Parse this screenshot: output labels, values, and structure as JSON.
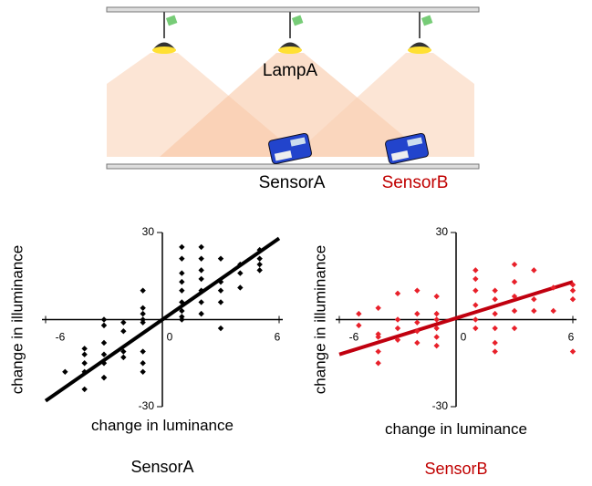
{
  "diagram": {
    "lamp_label": "LampA",
    "sensors": [
      "SensorA",
      "SensorB"
    ]
  },
  "chart_data": [
    {
      "type": "scatter",
      "title": "SensorA",
      "title_color": "#000000",
      "xlabel": "change in luminance",
      "ylabel": "change in illuminance",
      "xlim": [
        -6,
        6
      ],
      "ylim": [
        -30,
        30
      ],
      "xticks": [
        -6,
        0,
        6
      ],
      "yticks": [
        -30,
        30
      ],
      "color": "#000000",
      "x": [
        -5,
        -4,
        -4,
        -4,
        -4,
        -4,
        -3,
        -3,
        -3,
        -3,
        -3,
        -3,
        -3,
        -2,
        -2,
        -2,
        -2,
        -1,
        -1,
        -1,
        -1,
        -1,
        -1,
        -1,
        -1,
        1,
        1,
        1,
        1,
        1,
        1,
        1,
        1,
        1,
        2,
        2,
        2,
        2,
        2,
        2,
        2,
        3,
        3,
        3,
        3,
        3,
        4,
        4,
        4,
        5,
        5,
        5,
        5
      ],
      "values": [
        -18,
        -10,
        -12,
        -15,
        -18,
        -24,
        0,
        -2,
        -8,
        -12,
        -15,
        -20,
        -20,
        -1,
        -4,
        -11,
        -13,
        10,
        4,
        2,
        0,
        -1,
        -11,
        -15,
        -18,
        25,
        21,
        16,
        13,
        10,
        6,
        3,
        1,
        0,
        25,
        21,
        17,
        14,
        10,
        6,
        2,
        21,
        13,
        10,
        6,
        -3,
        19,
        16,
        11,
        24,
        21,
        19,
        17
      ],
      "fit": {
        "x": [
          -6,
          6
        ],
        "values": [
          -28,
          28
        ],
        "color": "#000000"
      }
    },
    {
      "type": "scatter",
      "title": "SensorB",
      "title_color": "#c00000",
      "xlabel": "change in luminance",
      "ylabel": "change in illuminance",
      "xlim": [
        -6,
        6
      ],
      "ylim": [
        -30,
        30
      ],
      "xticks": [
        -6,
        0,
        6
      ],
      "yticks": [
        -30,
        30
      ],
      "color": "#e8202a",
      "x": [
        -5,
        -5,
        -4,
        -4,
        -4,
        -4,
        -4,
        -3,
        -3,
        -3,
        -3,
        -2,
        -2,
        -2,
        -2,
        -2,
        -1,
        -1,
        -1,
        -1,
        -1,
        -1,
        1,
        1,
        1,
        1,
        1,
        1,
        2,
        2,
        2,
        2,
        2,
        2,
        3,
        3,
        3,
        3,
        3,
        4,
        4,
        4,
        5,
        5,
        6,
        6,
        6,
        6
      ],
      "values": [
        2,
        -2,
        4,
        -5,
        -6,
        -11,
        -15,
        9,
        0,
        -3,
        -7,
        10,
        2,
        -1,
        -4,
        -8,
        8,
        2,
        0,
        -3,
        -6,
        -9,
        17,
        14,
        10,
        5,
        0,
        -3,
        10,
        7,
        2,
        -3,
        -8,
        -11,
        19,
        13,
        8,
        3,
        -3,
        17,
        7,
        3,
        11,
        3,
        12,
        10,
        7,
        -11
      ],
      "fit": {
        "x": [
          -6,
          6
        ],
        "values": [
          -12,
          13
        ],
        "color": "#c0000f"
      }
    }
  ]
}
